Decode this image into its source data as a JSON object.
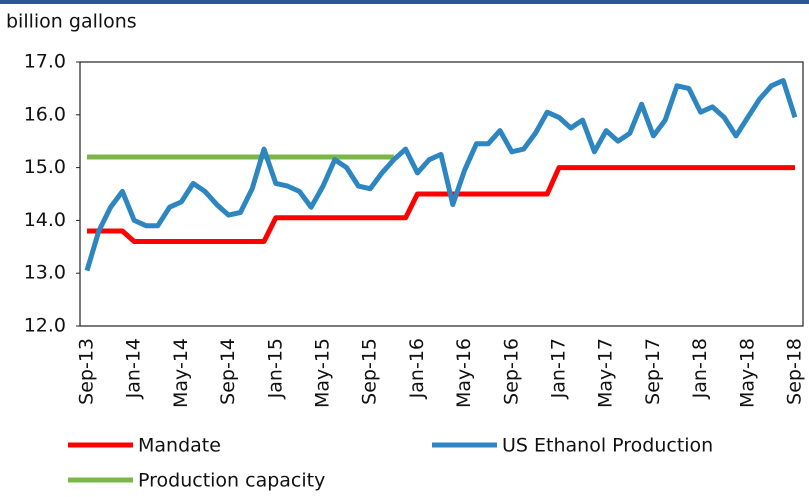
{
  "chart_data": {
    "type": "line",
    "y_label": "billion gallons",
    "categories": [
      "Sep-13",
      null,
      null,
      null,
      "Jan-14",
      null,
      null,
      null,
      "May-14",
      null,
      null,
      null,
      "Sep-14",
      null,
      null,
      null,
      "Jan-15",
      null,
      null,
      null,
      "May-15",
      null,
      null,
      null,
      "Sep-15",
      null,
      null,
      null,
      "Jan-16",
      null,
      null,
      null,
      "May-16",
      null,
      null,
      null,
      "Sep-16",
      null,
      null,
      null,
      "Jan-17",
      null,
      null,
      null,
      "May-17",
      null,
      null,
      null,
      "Sep-17",
      null,
      null,
      null,
      "Jan-18",
      null,
      null,
      null,
      "May-18",
      null,
      null,
      null,
      "Sep-18"
    ],
    "series": [
      {
        "name": "Mandate",
        "color": "#ff0000",
        "values": [
          13.8,
          13.8,
          13.8,
          13.8,
          13.6,
          13.6,
          13.6,
          13.6,
          13.6,
          13.6,
          13.6,
          13.6,
          13.6,
          13.6,
          13.6,
          13.6,
          14.05,
          14.05,
          14.05,
          14.05,
          14.05,
          14.05,
          14.05,
          14.05,
          14.05,
          14.05,
          14.05,
          14.05,
          14.5,
          14.5,
          14.5,
          14.5,
          14.5,
          14.5,
          14.5,
          14.5,
          14.5,
          14.5,
          14.5,
          14.5,
          15.0,
          15.0,
          15.0,
          15.0,
          15.0,
          15.0,
          15.0,
          15.0,
          15.0,
          15.0,
          15.0,
          15.0,
          15.0,
          15.0,
          15.0,
          15.0,
          15.0,
          15.0,
          15.0,
          15.0,
          15.0
        ]
      },
      {
        "name": "US Ethanol Production",
        "color": "#2e86c1",
        "values": [
          13.05,
          13.8,
          14.25,
          14.55,
          14.0,
          13.9,
          13.9,
          14.25,
          14.35,
          14.7,
          14.55,
          14.3,
          14.1,
          14.15,
          14.6,
          15.35,
          14.7,
          14.65,
          14.55,
          14.25,
          14.65,
          15.15,
          15.0,
          14.65,
          14.6,
          14.9,
          15.15,
          15.35,
          14.9,
          15.15,
          15.25,
          14.3,
          14.95,
          15.45,
          15.45,
          15.7,
          15.3,
          15.35,
          15.65,
          16.05,
          15.95,
          15.75,
          15.9,
          15.3,
          15.7,
          15.5,
          15.65,
          16.2,
          15.6,
          15.9,
          16.55,
          16.5,
          16.05,
          16.15,
          15.95,
          15.6,
          15.95,
          16.3,
          16.55,
          16.65,
          15.95
        ]
      },
      {
        "name": "Production capacity",
        "color": "#7ab648",
        "values": [
          15.2,
          15.2,
          15.2,
          15.2,
          15.2,
          15.2,
          15.2,
          15.2,
          15.2,
          15.2,
          15.2,
          15.2,
          15.2,
          15.2,
          15.2,
          15.2,
          15.2,
          15.2,
          15.2,
          15.2,
          15.2,
          15.2,
          15.2,
          15.2,
          15.2,
          15.2,
          15.2,
          null,
          null,
          null,
          null,
          null,
          null,
          null,
          null,
          null,
          null,
          null,
          null,
          null,
          null,
          null,
          null,
          null,
          null,
          null,
          null,
          null,
          null,
          null,
          null,
          null,
          null,
          null,
          null,
          null,
          null,
          null,
          null,
          null,
          null
        ]
      }
    ],
    "ylim": [
      12,
      17
    ],
    "yticks": [
      {
        "value": 12,
        "label": "12.0"
      },
      {
        "value": 13,
        "label": "13.0"
      },
      {
        "value": 14,
        "label": "14.0"
      },
      {
        "value": 15,
        "label": "15.0"
      },
      {
        "value": 16,
        "label": "16.0"
      },
      {
        "value": 17,
        "label": "17.0"
      }
    ],
    "grid": false
  }
}
